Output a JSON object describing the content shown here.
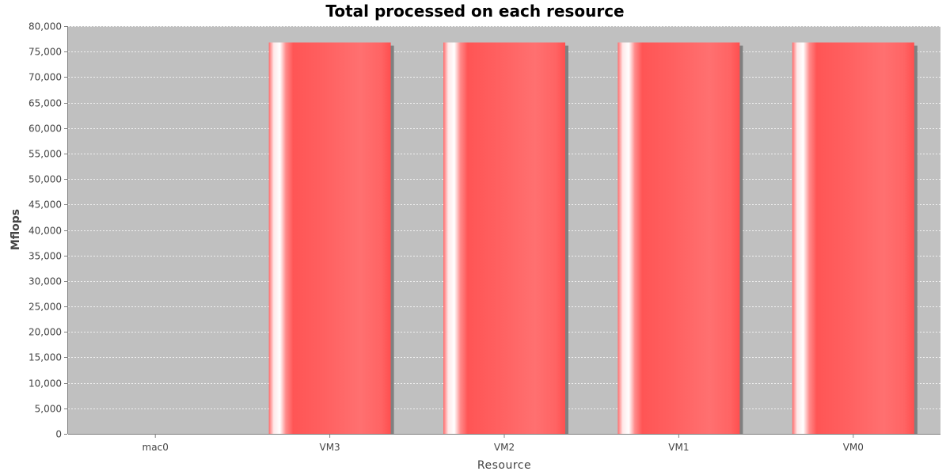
{
  "chart_data": {
    "type": "bar",
    "title": "Total processed on each resource",
    "xlabel": "Resource",
    "ylabel": "Mflops",
    "categories": [
      "mac0",
      "VM3",
      "VM2",
      "VM1",
      "VM0"
    ],
    "values": [
      0,
      76800,
      76800,
      76800,
      76800
    ],
    "ylim": [
      0,
      80000
    ],
    "yticks": [
      0,
      5000,
      10000,
      15000,
      20000,
      25000,
      30000,
      35000,
      40000,
      45000,
      50000,
      55000,
      60000,
      65000,
      70000,
      75000,
      80000
    ],
    "ytick_labels": [
      "0",
      "5,000",
      "10,000",
      "15,000",
      "20,000",
      "25,000",
      "30,000",
      "35,000",
      "40,000",
      "45,000",
      "50,000",
      "55,000",
      "60,000",
      "65,000",
      "70,000",
      "75,000",
      "80,000"
    ],
    "grid": true,
    "plot_background": "#c0c0c0",
    "bar_color": "#ff5555",
    "shadow_color": "#808080"
  }
}
